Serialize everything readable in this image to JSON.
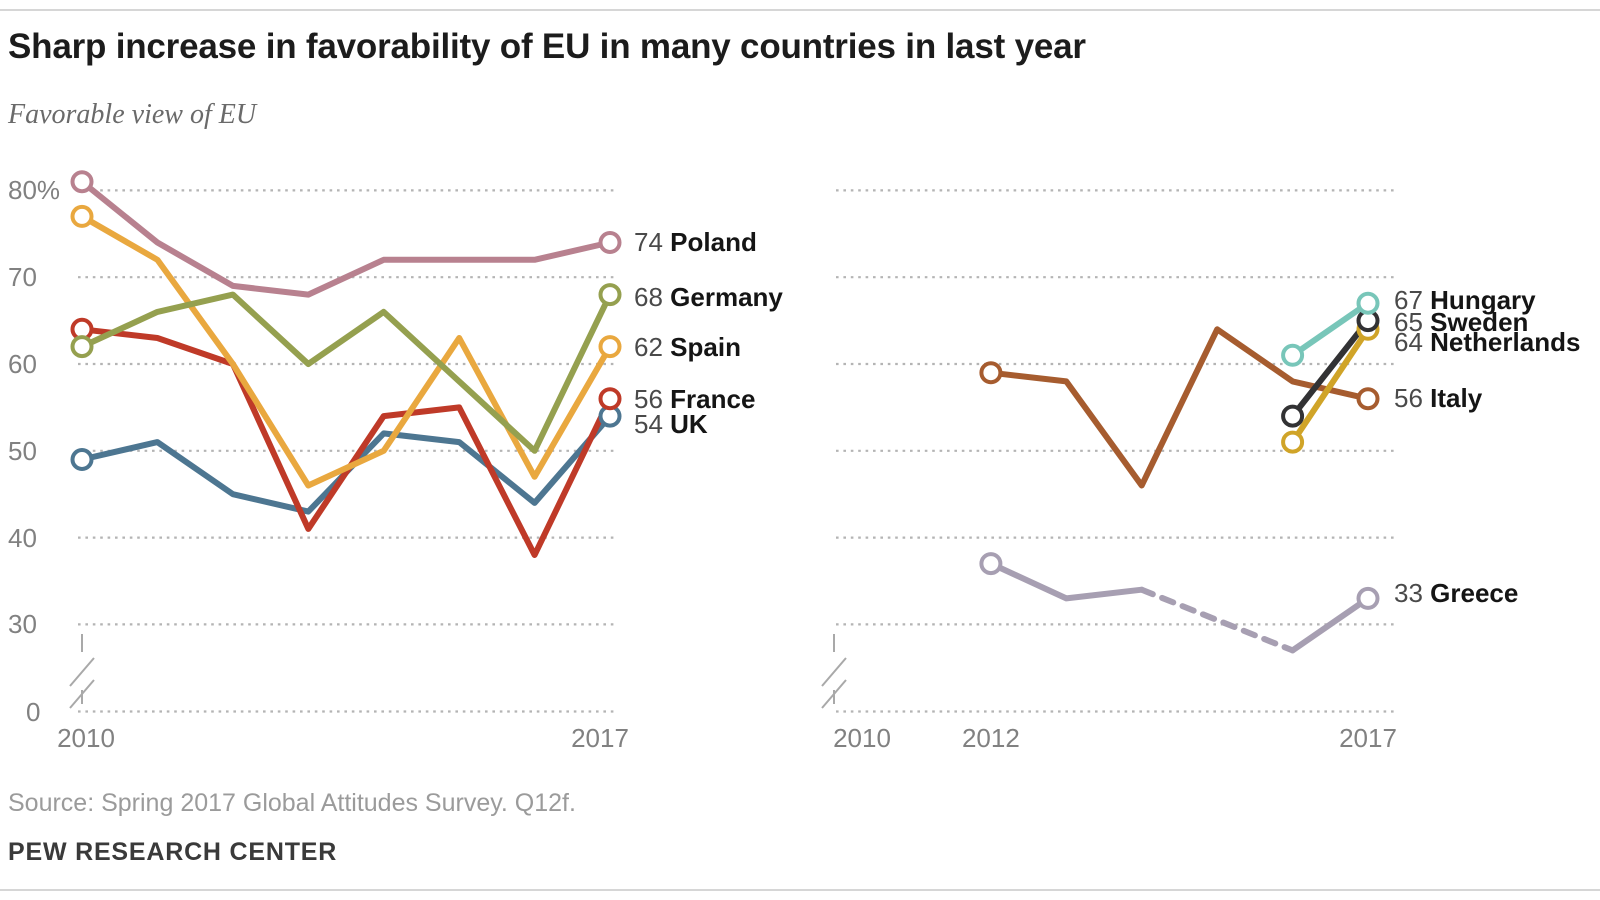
{
  "header": {
    "title": "Sharp increase in favorability of EU in many countries in last year",
    "subtitle": "Favorable view of EU"
  },
  "footer": {
    "source": "Source: Spring 2017 Global Attitudes Survey. Q12f.",
    "branding": "PEW RESEARCH CENTER"
  },
  "colors": {
    "grid": "#b4b4b4",
    "axis_text": "#818181",
    "axis_break": "#a9a9a9",
    "label_value": "#4a4a4a",
    "label_name": "#151515",
    "title": "#1c1c1c",
    "subtitle": "#6a6a6a",
    "source": "#9b9b9b",
    "branding": "#3a3a3a",
    "rule": "#d6d6d6"
  },
  "chart_data": [
    {
      "type": "line",
      "panel": "left",
      "x_range": [
        2010,
        2017
      ],
      "ylim": [
        0,
        85
      ],
      "grid": "dotted",
      "axis_break": true,
      "y_axis": {
        "grid_values": [
          80,
          70,
          60,
          50,
          40,
          30,
          0
        ],
        "tick_labels": [
          {
            "label": "80%",
            "value": 80
          },
          {
            "label": "70",
            "value": 70
          },
          {
            "label": "60",
            "value": 60
          },
          {
            "label": "50",
            "value": 50
          },
          {
            "label": "40",
            "value": 40
          },
          {
            "label": "30",
            "value": 30
          },
          {
            "label": "0",
            "value": 0
          }
        ]
      },
      "x_axis": {
        "tick_labels": [
          {
            "label": "2010",
            "year": 2010
          },
          {
            "label": "2017",
            "year": 2017
          }
        ]
      },
      "series": [
        {
          "name": "Poland",
          "color": "#b8818f",
          "points": [
            {
              "year": 2010,
              "value": 81
            },
            {
              "year": 2011,
              "value": 74
            },
            {
              "year": 2012,
              "value": 69
            },
            {
              "year": 2013,
              "value": 68
            },
            {
              "year": 2014,
              "value": 72
            },
            {
              "year": 2015,
              "value": 72
            },
            {
              "year": 2016,
              "value": 72
            },
            {
              "year": 2017,
              "value": 74
            }
          ],
          "end_label": {
            "value": "74",
            "name": "Poland"
          }
        },
        {
          "name": "Germany",
          "color": "#95a04f",
          "points": [
            {
              "year": 2010,
              "value": 62
            },
            {
              "year": 2011,
              "value": 66
            },
            {
              "year": 2012,
              "value": 68
            },
            {
              "year": 2013,
              "value": 60
            },
            {
              "year": 2014,
              "value": 66
            },
            {
              "year": 2015,
              "value": 58
            },
            {
              "year": 2016,
              "value": 50
            },
            {
              "year": 2017,
              "value": 68
            }
          ],
          "end_label": {
            "value": "68",
            "name": "Germany"
          }
        },
        {
          "name": "Spain",
          "color": "#e9a83f",
          "points": [
            {
              "year": 2010,
              "value": 77
            },
            {
              "year": 2011,
              "value": 72
            },
            {
              "year": 2012,
              "value": 60
            },
            {
              "year": 2013,
              "value": 46
            },
            {
              "year": 2014,
              "value": 50
            },
            {
              "year": 2015,
              "value": 63
            },
            {
              "year": 2016,
              "value": 47
            },
            {
              "year": 2017,
              "value": 62
            }
          ],
          "end_label": {
            "value": "62",
            "name": "Spain"
          }
        },
        {
          "name": "France",
          "color": "#bf3a28",
          "points": [
            {
              "year": 2010,
              "value": 64
            },
            {
              "year": 2011,
              "value": 63
            },
            {
              "year": 2012,
              "value": 60
            },
            {
              "year": 2013,
              "value": 41
            },
            {
              "year": 2014,
              "value": 54
            },
            {
              "year": 2015,
              "value": 55
            },
            {
              "year": 2016,
              "value": 38
            },
            {
              "year": 2017,
              "value": 56
            }
          ],
          "end_label": {
            "value": "56",
            "name": "France"
          }
        },
        {
          "name": "UK",
          "color": "#4d7691",
          "points": [
            {
              "year": 2010,
              "value": 49
            },
            {
              "year": 2011,
              "value": 51
            },
            {
              "year": 2012,
              "value": 45
            },
            {
              "year": 2013,
              "value": 43
            },
            {
              "year": 2014,
              "value": 52
            },
            {
              "year": 2015,
              "value": 51
            },
            {
              "year": 2016,
              "value": 44
            },
            {
              "year": 2017,
              "value": 54
            }
          ],
          "end_label": {
            "value": "54",
            "name": "UK"
          }
        }
      ]
    },
    {
      "type": "line",
      "panel": "right",
      "x_range": [
        2010,
        2017
      ],
      "ylim": [
        0,
        85
      ],
      "grid": "dotted",
      "axis_break": true,
      "y_axis": {
        "grid_values": [
          80,
          70,
          60,
          50,
          40,
          30,
          0
        ],
        "tick_labels": []
      },
      "x_axis": {
        "tick_labels": [
          {
            "label": "2010",
            "year": 2010
          },
          {
            "label": "2012",
            "year": 2012
          },
          {
            "label": "2017",
            "year": 2017
          }
        ]
      },
      "series": [
        {
          "name": "Hungary",
          "color": "#78c6b9",
          "points": [
            {
              "year": 2016,
              "value": 61
            },
            {
              "year": 2017,
              "value": 67
            }
          ],
          "end_label": {
            "value": "67",
            "name": "Hungary"
          }
        },
        {
          "name": "Sweden",
          "color": "#323234",
          "points": [
            {
              "year": 2016,
              "value": 54
            },
            {
              "year": 2017,
              "value": 65
            }
          ],
          "end_label": {
            "value": "65",
            "name": "Sweden"
          }
        },
        {
          "name": "Netherlands",
          "color": "#d0a428",
          "points": [
            {
              "year": 2016,
              "value": 51
            },
            {
              "year": 2017,
              "value": 64
            }
          ],
          "end_label": {
            "value": "64",
            "name": "Netherlands"
          }
        },
        {
          "name": "Italy",
          "color": "#a65c2f",
          "points": [
            {
              "year": 2012,
              "value": 59
            },
            {
              "year": 2013,
              "value": 58
            },
            {
              "year": 2014,
              "value": 46
            },
            {
              "year": 2015,
              "value": 64
            },
            {
              "year": 2016,
              "value": 58
            },
            {
              "year": 2017,
              "value": 56
            }
          ],
          "end_label": {
            "value": "56",
            "name": "Italy"
          }
        },
        {
          "name": "Greece",
          "color": "#a79fb2",
          "points": [
            {
              "year": 2012,
              "value": 37
            },
            {
              "year": 2013,
              "value": 33
            },
            {
              "year": 2014,
              "value": 34
            },
            {
              "year": 2016,
              "value": 27
            },
            {
              "year": 2017,
              "value": 33
            }
          ],
          "dashed_segments": [
            [
              2014,
              2016
            ]
          ],
          "end_label": {
            "value": "33",
            "name": "Greece"
          }
        }
      ]
    }
  ]
}
